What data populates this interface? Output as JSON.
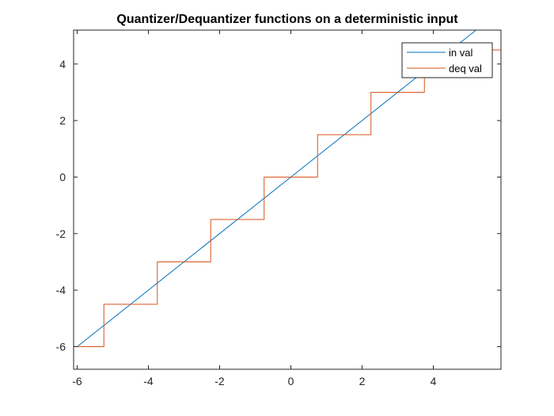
{
  "chart_data": {
    "type": "line",
    "title": "Quantizer/Dequantizer functions on a deterministic input",
    "xlabel": "",
    "ylabel": "",
    "xlim": [
      -6.1,
      5.9
    ],
    "ylim": [
      -6.8,
      5.2
    ],
    "xticks": [
      -6,
      -4,
      -2,
      0,
      2,
      4
    ],
    "yticks": [
      -6,
      -4,
      -2,
      0,
      2,
      4
    ],
    "x_tick_labels": [
      "-6",
      "-4",
      "-2",
      "0",
      "2",
      "4"
    ],
    "y_tick_labels": [
      "-6",
      "-4",
      "-2",
      "0",
      "2",
      "4"
    ],
    "grid": false,
    "legend_position": "top-right",
    "series": [
      {
        "name": "in val",
        "color": "#0072BD",
        "kind": "line",
        "x": [
          -6,
          5.2
        ],
        "y": [
          -6,
          5.2
        ]
      },
      {
        "name": "deq val",
        "color": "#D95319",
        "kind": "step",
        "x": [
          -6,
          -5.25,
          -5.25,
          -3.75,
          -3.75,
          -2.25,
          -2.25,
          -0.75,
          -0.75,
          0.75,
          0.75,
          2.25,
          2.25,
          3.75,
          3.75,
          5.25,
          5.25,
          5.9
        ],
        "y": [
          -6,
          -6,
          -4.5,
          -4.5,
          -3,
          -3,
          -1.5,
          -1.5,
          0,
          0,
          1.5,
          1.5,
          3,
          3,
          4.5,
          4.5,
          4.5,
          4.5
        ]
      }
    ]
  }
}
